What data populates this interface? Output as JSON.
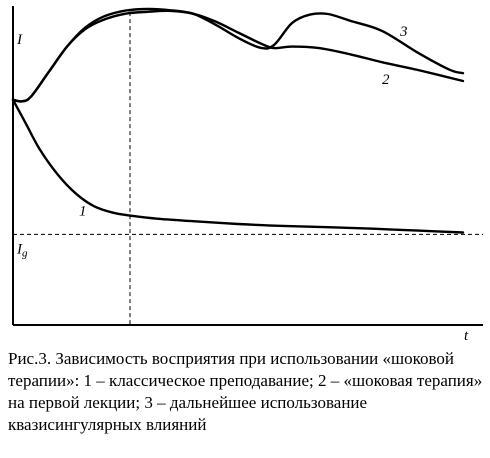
{
  "chart_data": {
    "type": "line",
    "xlabel": "t",
    "ylabel": "I",
    "threshold_label_main": "I",
    "threshold_label_sub": "g",
    "xlim": [
      0,
      100
    ],
    "ylim": [
      0,
      100
    ],
    "threshold": 28,
    "event_x": 26,
    "series": [
      {
        "name": "1",
        "values": [
          [
            0,
            71
          ],
          [
            3,
            63
          ],
          [
            6,
            55
          ],
          [
            10,
            47
          ],
          [
            14,
            41
          ],
          [
            18,
            37
          ],
          [
            22,
            35
          ],
          [
            26,
            34
          ],
          [
            32,
            33
          ],
          [
            40,
            32.2
          ],
          [
            50,
            31.3
          ],
          [
            60,
            30.7
          ],
          [
            70,
            30.3
          ],
          [
            80,
            29.8
          ],
          [
            90,
            29.2
          ],
          [
            100,
            28.6
          ]
        ],
        "label_at": 20
      },
      {
        "name": "2",
        "values": [
          [
            0,
            71
          ],
          [
            2,
            70.5
          ],
          [
            4,
            72
          ],
          [
            8,
            80
          ],
          [
            12,
            88
          ],
          [
            16,
            93.5
          ],
          [
            20,
            96.5
          ],
          [
            25,
            98.5
          ],
          [
            30,
            99.1
          ],
          [
            35,
            99.4
          ],
          [
            40,
            98.5
          ],
          [
            45,
            96
          ],
          [
            50,
            92.5
          ],
          [
            55,
            89
          ],
          [
            58,
            87.5
          ],
          [
            62,
            88
          ],
          [
            68,
            87.5
          ],
          [
            75,
            85.5
          ],
          [
            82,
            83
          ],
          [
            90,
            80.5
          ],
          [
            100,
            77
          ]
        ],
        "label_at": 82
      },
      {
        "name": "3",
        "values": [
          [
            0,
            71
          ],
          [
            2,
            70.5
          ],
          [
            4,
            72
          ],
          [
            8,
            80
          ],
          [
            12,
            88
          ],
          [
            16,
            94
          ],
          [
            20,
            97.5
          ],
          [
            25,
            99.5
          ],
          [
            30,
            100
          ],
          [
            35,
            99.6
          ],
          [
            40,
            98.5
          ],
          [
            45,
            95
          ],
          [
            50,
            90.8
          ],
          [
            55,
            87.6
          ],
          [
            58,
            88.5
          ],
          [
            62,
            95.5
          ],
          [
            66,
            98.2
          ],
          [
            70,
            98.4
          ],
          [
            75,
            96.2
          ],
          [
            82,
            93
          ],
          [
            90,
            86
          ],
          [
            97,
            80.6
          ],
          [
            100,
            79.5
          ]
        ],
        "label_at": 86
      }
    ]
  },
  "caption": "Рис.3. Зависимость восприятия при использовании «шоковой терапии»: 1 – классическое преподавание; 2 – «шоковая терапия» на первой лекции; 3 – дальнейшее использование квазисингулярных влияний"
}
